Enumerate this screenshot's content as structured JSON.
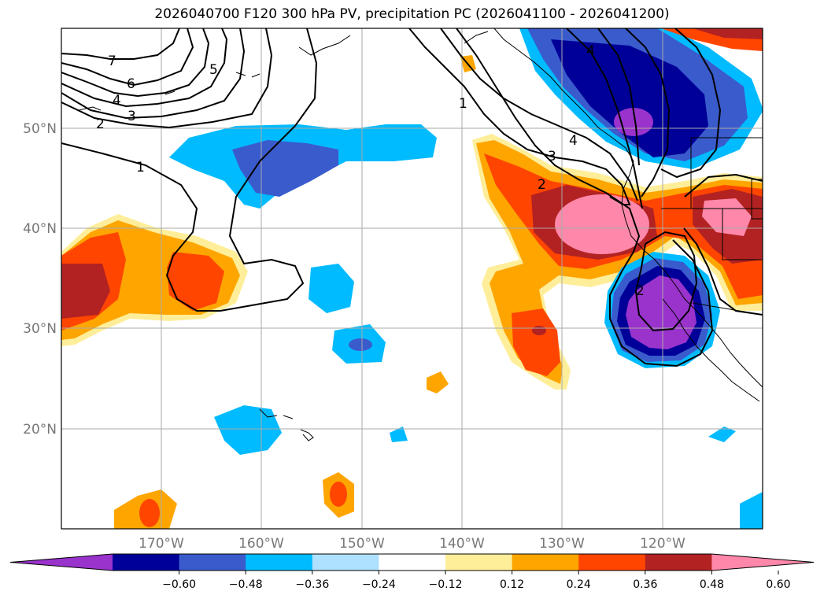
{
  "title": "2026040700 F120 300 hPa PV, precipitation PC (2026041100 - 2026041200)",
  "lat_labels": [
    "50°N",
    "40°N",
    "30°N",
    "20°N"
  ],
  "lon_labels": [
    "170°W",
    "160°W",
    "150°W",
    "140°W",
    "130°W",
    "120°W"
  ],
  "colorbar": {
    "tick_labels": [
      "−0.60",
      "−0.48",
      "−0.36",
      "−0.24",
      "−0.12",
      "0.12",
      "0.24",
      "0.36",
      "0.48",
      "0.60"
    ],
    "colors": [
      "#9933CC",
      "#000099",
      "#3A5BCC",
      "#00BBFF",
      "#AEE0FF",
      "#FFFFFF",
      "#FFEE99",
      "#FFA500",
      "#FF4500",
      "#B22222",
      "#FF88AA"
    ]
  },
  "pv_contour_labels": [
    "7",
    "6",
    "5",
    "4",
    "3",
    "2",
    "1",
    "1",
    "1",
    "2",
    "3",
    "4",
    "4",
    "2"
  ]
}
